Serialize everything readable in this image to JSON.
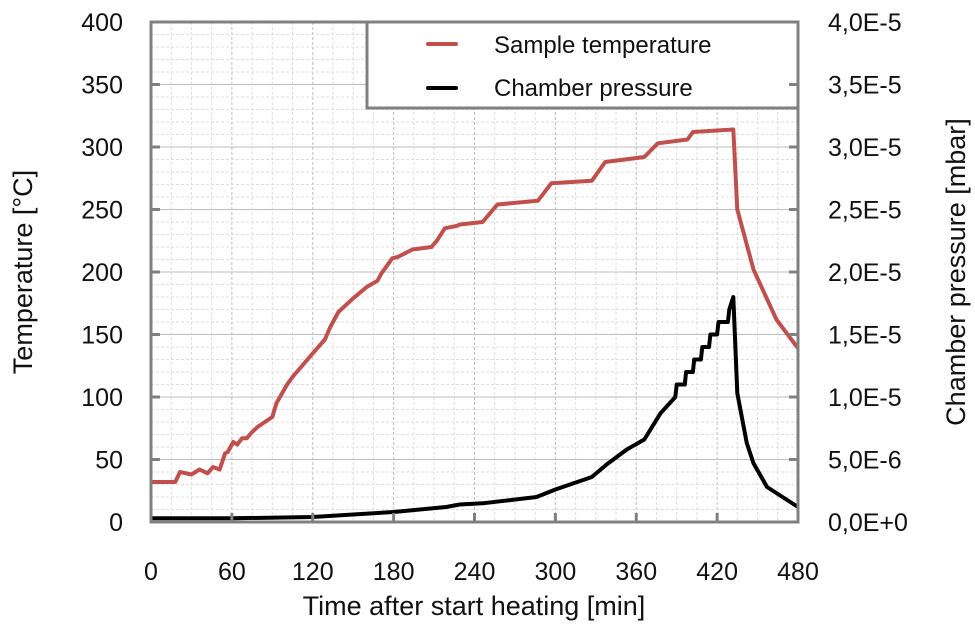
{
  "chart_data": {
    "type": "line",
    "title": "",
    "xlabel": "Time after start heating [min]",
    "ylabel": "Temperature [°C]",
    "y2label": "Chamber pressure [mbar]",
    "xlim": [
      0,
      480
    ],
    "ylim": [
      0,
      400
    ],
    "y2lim": [
      0,
      4e-05
    ],
    "xticks": [
      0,
      60,
      120,
      180,
      240,
      300,
      360,
      420,
      480
    ],
    "yticks": [
      0,
      50,
      100,
      150,
      200,
      250,
      300,
      350,
      400
    ],
    "y2ticks": [
      0,
      5e-06,
      1e-05,
      1.5e-05,
      2e-05,
      2.5e-05,
      3e-05,
      3.5e-05,
      4e-05
    ],
    "y2tick_labels": [
      "0,0E+0",
      "5,0E-6",
      "1,0E-5",
      "1,5E-5",
      "2,0E-5",
      "2,5E-5",
      "3,0E-5",
      "3,5E-5",
      "4,0E-5"
    ],
    "grid": true,
    "legend_position": "top-right",
    "series": [
      {
        "name": "Sample temperature",
        "axis": "left",
        "color": "#c0504d",
        "x": [
          0,
          18,
          21.5,
          30,
          36,
          42,
          46,
          51,
          55,
          57,
          61,
          64,
          67.5,
          71,
          75,
          79,
          90,
          93,
          101,
          105,
          120,
          129,
          133,
          139,
          150,
          160,
          168,
          171,
          179,
          183,
          194,
          208,
          212,
          218,
          227,
          229,
          246,
          257,
          287,
          297,
          327,
          337,
          366,
          376,
          398,
          402,
          432,
          435,
          447,
          464,
          480
        ],
        "y": [
          32,
          32,
          40,
          38,
          42,
          39,
          44,
          42,
          55,
          56,
          64,
          62,
          67,
          67,
          72,
          76,
          84,
          95,
          110,
          116,
          135,
          146,
          156,
          168,
          179,
          188,
          193,
          199,
          211,
          212,
          218,
          220,
          225,
          235,
          237,
          238,
          240,
          254,
          257,
          271,
          273,
          288,
          292,
          303,
          306,
          312,
          314,
          250,
          202,
          162,
          139
        ]
      },
      {
        "name": "Chamber pressure",
        "axis": "right",
        "color": "#000000",
        "x": [
          0,
          60,
          120,
          150,
          180,
          219,
          229,
          246,
          286,
          300,
          327,
          338,
          353,
          366,
          378,
          389,
          390,
          396,
          397,
          402,
          403,
          408,
          409,
          414,
          415,
          420,
          421,
          428,
          429,
          432,
          435,
          442,
          447,
          457,
          480
        ],
        "y": [
          3e-07,
          3e-07,
          4e-07,
          6e-07,
          8e-07,
          1.2e-06,
          1.4e-06,
          1.5e-06,
          2e-06,
          2.6e-06,
          3.6e-06,
          4.6e-06,
          5.8e-06,
          6.6e-06,
          8.7e-06,
          1e-05,
          1.1e-05,
          1.1e-05,
          1.2e-05,
          1.2e-05,
          1.3e-05,
          1.3e-05,
          1.4e-05,
          1.4e-05,
          1.5e-05,
          1.5e-05,
          1.6e-05,
          1.6e-05,
          1.7e-05,
          1.8e-05,
          1.03e-05,
          6.3e-06,
          4.7e-06,
          2.8e-06,
          1.2e-06
        ]
      }
    ]
  }
}
